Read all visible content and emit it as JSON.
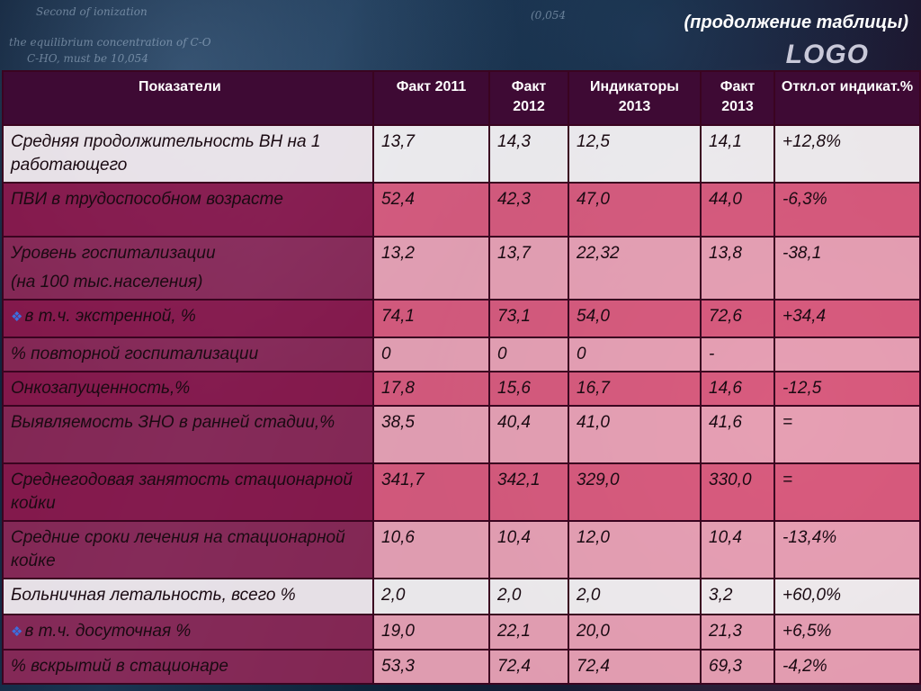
{
  "header": {
    "subtitle": "(продолжение таблицы)",
    "logo": "LOGO"
  },
  "background": {
    "formulas": [
      "the equilibrium concentration of C-O",
      "C-HO,  must be 10,054",
      "Second  of ionization",
      "(0,054"
    ]
  },
  "table": {
    "columns": [
      "Показатели",
      "Факт 2011",
      "Факт 2012",
      "Индикаторы 2013",
      "Факт 2013",
      "Откл.от индикат.%"
    ],
    "rows": [
      {
        "indicator": "Средняя продолжительность ВН на 1 работающего",
        "bullet": false,
        "style": "white",
        "fact2011": "13,7",
        "fact2012": "14,3",
        "target2013": "12,5",
        "fact2013": "14,1",
        "deviation": "+12,8%"
      },
      {
        "indicator": "ПВИ в трудоспособном возрасте",
        "bullet": false,
        "style": "pink",
        "fact2011": "52,4",
        "fact2012": "42,3",
        "target2013": "47,0",
        "fact2013": "44,0",
        "deviation": "-6,3%"
      },
      {
        "indicator": "Уровень госпитализации",
        "indicator_line2": "(на 100 тыс.населения)",
        "bullet": false,
        "style": "pinklite",
        "fact2011": "13,2",
        "fact2012": "13,7",
        "target2013": "22,32",
        "fact2013": "13,8",
        "deviation": "-38,1"
      },
      {
        "indicator": "в т.ч. экстренной, %",
        "bullet": true,
        "style": "pink",
        "fact2011": "74,1",
        "fact2012": "73,1",
        "target2013": "54,0",
        "fact2013": "72,6",
        "deviation": "+34,4"
      },
      {
        "indicator": "% повторной госпитализации",
        "bullet": false,
        "style": "pinklite",
        "fact2011": "0",
        "fact2012": "0",
        "target2013": "0",
        "fact2013": "-",
        "deviation": ""
      },
      {
        "indicator": "Онкозапущенность,%",
        "bullet": false,
        "style": "pink",
        "fact2011": "17,8",
        "fact2012": "15,6",
        "target2013": "16,7",
        "fact2013": "14,6",
        "deviation": "-12,5"
      },
      {
        "indicator": "Выявляемость ЗНО в ранней стадии,%",
        "bullet": false,
        "style": "pinklite",
        "fact2011": "38,5",
        "fact2012": "40,4",
        "target2013": "41,0",
        "fact2013": "41,6",
        "deviation": "="
      },
      {
        "indicator": "Среднегодовая занятость стационарной койки",
        "bullet": false,
        "style": "pink",
        "fact2011": "341,7",
        "fact2012": "342,1",
        "target2013": "329,0",
        "fact2013": "330,0",
        "deviation": "="
      },
      {
        "indicator": "Средние сроки лечения на стационарной койке",
        "bullet": false,
        "style": "pinklite",
        "fact2011": "10,6",
        "fact2012": "10,4",
        "target2013": "12,0",
        "fact2013": "10,4",
        "deviation": "-13,4%"
      },
      {
        "indicator": "Больничная летальность, всего %",
        "bullet": false,
        "style": "white",
        "fact2011": "2,0",
        "fact2012": "2,0",
        "target2013": "2,0",
        "fact2013": "3,2",
        "deviation": "+60,0%"
      },
      {
        "indicator": "в т.ч. досуточная %",
        "bullet": true,
        "style": "pinklite",
        "fact2011": "19,0",
        "fact2012": "22,1",
        "target2013": "20,0",
        "fact2013": "21,3",
        "deviation": "+6,5%"
      },
      {
        "indicator": "% вскрытий в стационаре",
        "bullet": false,
        "style": "pinklite",
        "fact2011": "53,3",
        "fact2012": "72,4",
        "target2013": "72,4",
        "fact2013": "69,3",
        "deviation": "-4,2%"
      }
    ]
  }
}
